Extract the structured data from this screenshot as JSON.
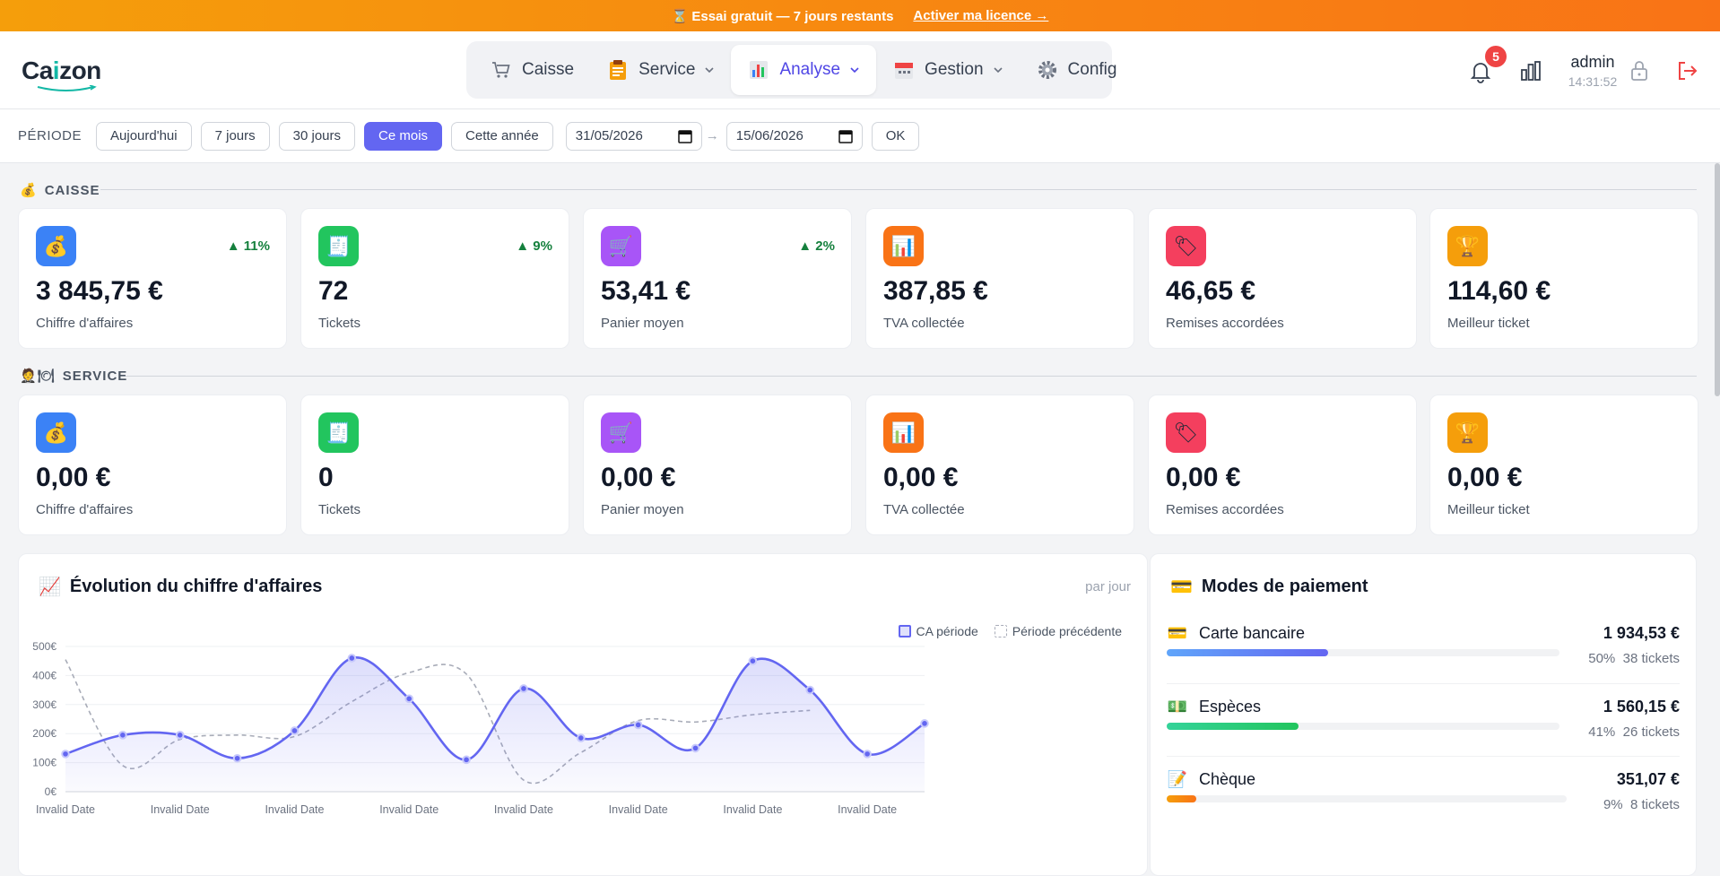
{
  "banner": {
    "trial_text": "Essai gratuit — 7 jours restants",
    "cta_label": "Activer ma licence →"
  },
  "header": {
    "logo": {
      "part1": "Ca",
      "part2": "i",
      "part3": "zon"
    },
    "nav": [
      {
        "label": "Caisse",
        "icon": "cart-icon",
        "dropdown": false
      },
      {
        "label": "Service",
        "icon": "clipboard-icon",
        "dropdown": true
      },
      {
        "label": "Analyse",
        "icon": "bar-chart-icon",
        "dropdown": true,
        "active": true
      },
      {
        "label": "Gestion",
        "icon": "calendar-icon",
        "dropdown": true
      },
      {
        "label": "Config",
        "icon": "gear-icon",
        "dropdown": false
      }
    ],
    "notifications_count": "5",
    "user": {
      "name": "admin",
      "time": "14:31:52"
    }
  },
  "period": {
    "label": "PÉRIODE",
    "buttons": [
      "Aujourd'hui",
      "7 jours",
      "30 jours",
      "Ce mois",
      "Cette année"
    ],
    "active": "Ce mois",
    "date_from": "31/05/2026",
    "arrow": "→",
    "date_to": "15/06/2026",
    "ok_label": "OK"
  },
  "caisse": {
    "title": "CAISSE",
    "cards": [
      {
        "value": "3 845,75 €",
        "label": "Chiffre d'affaires",
        "trend": "▲ 11%",
        "icon": "money-bag-icon",
        "color": "#3b82f6"
      },
      {
        "value": "72",
        "label": "Tickets",
        "trend": "▲ 9%",
        "icon": "receipt-icon",
        "color": "#22c55e"
      },
      {
        "value": "53,41 €",
        "label": "Panier moyen",
        "trend": "▲ 2%",
        "icon": "cart-icon",
        "color": "#a855f7"
      },
      {
        "value": "387,85 €",
        "label": "TVA collectée",
        "trend": "",
        "icon": "bar-chart-icon",
        "color": "#f97316"
      },
      {
        "value": "46,65 €",
        "label": "Remises accordées",
        "trend": "",
        "icon": "tag-icon",
        "color": "#f43f5e"
      },
      {
        "value": "114,60 €",
        "label": "Meilleur ticket",
        "trend": "",
        "icon": "trophy-icon",
        "color": "#f59e0b"
      }
    ]
  },
  "service": {
    "title": "SERVICE",
    "cards": [
      {
        "value": "0,00 €",
        "label": "Chiffre d'affaires",
        "icon": "money-bag-icon",
        "color": "#3b82f6"
      },
      {
        "value": "0",
        "label": "Tickets",
        "icon": "receipt-icon",
        "color": "#22c55e"
      },
      {
        "value": "0,00 €",
        "label": "Panier moyen",
        "icon": "cart-icon",
        "color": "#a855f7"
      },
      {
        "value": "0,00 €",
        "label": "TVA collectée",
        "icon": "bar-chart-icon",
        "color": "#f97316"
      },
      {
        "value": "0,00 €",
        "label": "Remises accordées",
        "icon": "tag-icon",
        "color": "#f43f5e"
      },
      {
        "value": "0,00 €",
        "label": "Meilleur ticket",
        "icon": "trophy-icon",
        "color": "#f59e0b"
      }
    ]
  },
  "revenue_chart": {
    "title": "Évolution du chiffre d'affaires",
    "granularity": "par jour",
    "legend": [
      "CA période",
      "Période précédente"
    ]
  },
  "payments": {
    "title": "Modes de paiement",
    "items": [
      {
        "name": "Carte bancaire",
        "amount": "1 934,53 €",
        "percent_label": "50%",
        "tickets": "38 tickets",
        "share": 0.5,
        "icon": "credit-card-icon",
        "color_from": "#60a5fa",
        "color_to": "#6366f1"
      },
      {
        "name": "Espèces",
        "amount": "1 560,15 €",
        "percent_label": "41%",
        "tickets": "26 tickets",
        "share": 0.41,
        "icon": "cash-icon",
        "color_from": "#34d399",
        "color_to": "#22c55e"
      },
      {
        "name": "Chèque",
        "amount": "351,07 €",
        "percent_label": "9%",
        "tickets": "8 tickets",
        "share": 0.09,
        "icon": "cheque-icon",
        "color_from": "#f59e0b",
        "color_to": "#f97316"
      }
    ]
  },
  "chart_data": {
    "type": "line",
    "title": "Évolution du chiffre d'affaires",
    "xlabel": "",
    "ylabel": "",
    "ylim": [
      0,
      500
    ],
    "y_ticks": [
      "0€",
      "100€",
      "200€",
      "300€",
      "400€",
      "500€"
    ],
    "x_tick_labels": [
      "Invalid Date",
      "Invalid Date",
      "Invalid Date",
      "Invalid Date",
      "Invalid Date",
      "Invalid Date",
      "Invalid Date",
      "Invalid Date"
    ],
    "grid": true,
    "legend_position": "top-right",
    "series": [
      {
        "name": "CA période",
        "color": "#6366f1",
        "style": "solid-filled",
        "values": [
          130,
          195,
          195,
          115,
          210,
          460,
          320,
          110,
          355,
          185,
          230,
          150,
          450,
          350,
          130,
          235
        ]
      },
      {
        "name": "Période précédente",
        "color": "#a8acb8",
        "style": "dashed",
        "values": [
          455,
          90,
          180,
          195,
          190,
          310,
          410,
          405,
          40,
          135,
          245,
          240,
          265,
          280
        ]
      }
    ]
  }
}
